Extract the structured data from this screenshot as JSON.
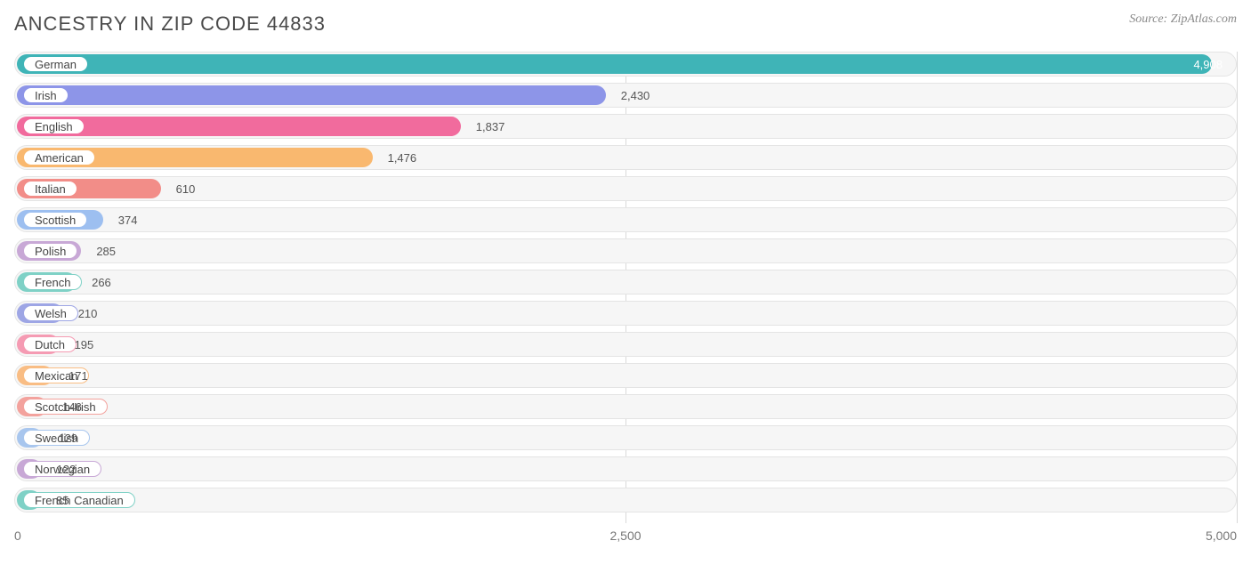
{
  "title": "ANCESTRY IN ZIP CODE 44833",
  "source": "Source: ZipAtlas.com",
  "chart": {
    "type": "bar",
    "orientation": "horizontal",
    "xmax": 5000,
    "track_bg": "#f6f6f6",
    "track_border": "#e4e4e4",
    "grid_color": "#d9d9d9",
    "label_fontsize": 13,
    "value_fontsize": 13,
    "title_fontsize": 22,
    "bar_label_offset": 120,
    "ticks": [
      {
        "pos": 0,
        "label": "0"
      },
      {
        "pos": 2500,
        "label": "2,500"
      },
      {
        "pos": 5000,
        "label": "5,000"
      }
    ],
    "bars": [
      {
        "label": "German",
        "value": 4908,
        "value_text": "4,908",
        "color": "#3fb4b7",
        "value_inside": true
      },
      {
        "label": "Irish",
        "value": 2430,
        "value_text": "2,430",
        "color": "#8d95e8",
        "value_inside": false
      },
      {
        "label": "English",
        "value": 1837,
        "value_text": "1,837",
        "color": "#f16b9d",
        "value_inside": false
      },
      {
        "label": "American",
        "value": 1476,
        "value_text": "1,476",
        "color": "#f9b86f",
        "value_inside": false
      },
      {
        "label": "Italian",
        "value": 610,
        "value_text": "610",
        "color": "#f28d88",
        "value_inside": false
      },
      {
        "label": "Scottish",
        "value": 374,
        "value_text": "374",
        "color": "#9dbff0",
        "value_inside": false
      },
      {
        "label": "Polish",
        "value": 285,
        "value_text": "285",
        "color": "#c8a8d6",
        "value_inside": false
      },
      {
        "label": "French",
        "value": 266,
        "value_text": "266",
        "color": "#7fd1c6",
        "value_inside": false
      },
      {
        "label": "Welsh",
        "value": 210,
        "value_text": "210",
        "color": "#9ea6e5",
        "value_inside": false
      },
      {
        "label": "Dutch",
        "value": 195,
        "value_text": "195",
        "color": "#f59bb3",
        "value_inside": false
      },
      {
        "label": "Mexican",
        "value": 171,
        "value_text": "171",
        "color": "#f9bd84",
        "value_inside": false
      },
      {
        "label": "Scotch-Irish",
        "value": 146,
        "value_text": "146",
        "color": "#f3a29d",
        "value_inside": false
      },
      {
        "label": "Swedish",
        "value": 129,
        "value_text": "129",
        "color": "#a8c6ee",
        "value_inside": false
      },
      {
        "label": "Norwegian",
        "value": 122,
        "value_text": "122",
        "color": "#c8a8d6",
        "value_inside": false
      },
      {
        "label": "French Canadian",
        "value": 85,
        "value_text": "85",
        "color": "#7fd1c6",
        "value_inside": false
      }
    ]
  }
}
